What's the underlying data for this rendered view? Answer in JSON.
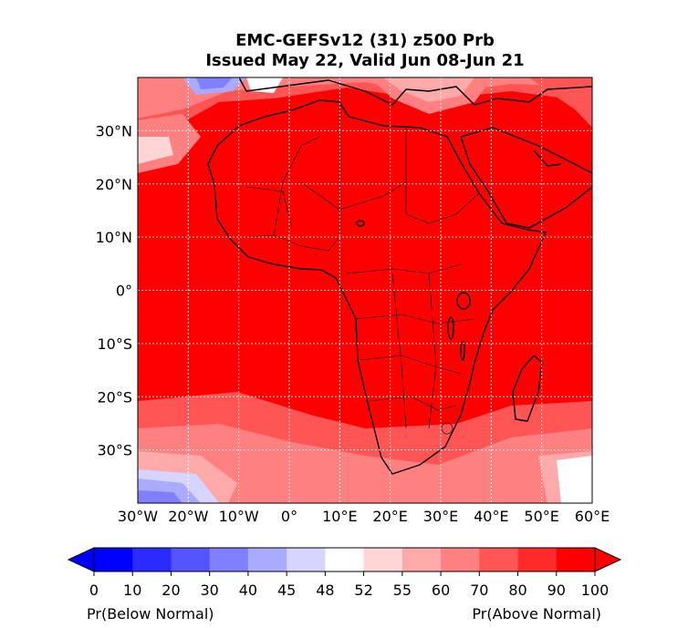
{
  "title": {
    "line1": "EMC-GEFSv12 (31) z500 Prb",
    "line2": "Issued May 22, Valid Jun 08-Jun 21"
  },
  "map": {
    "lon_ticks": [
      "30°W",
      "20°W",
      "10°W",
      "0°",
      "10°E",
      "20°E",
      "30°E",
      "40°E",
      "50°E",
      "60°E"
    ],
    "lat_ticks": [
      "30°N",
      "20°N",
      "10°N",
      "0°",
      "10°S",
      "20°S",
      "30°S"
    ],
    "gridlines": true,
    "extent": {
      "lon": [
        -30,
        60
      ],
      "lat": [
        -40,
        40
      ]
    }
  },
  "colorbar": {
    "levels": [
      "0",
      "10",
      "20",
      "30",
      "40",
      "45",
      "48",
      "52",
      "55",
      "60",
      "70",
      "80",
      "90",
      "100"
    ],
    "colors": [
      "#0000ff",
      "#2b2bff",
      "#5555ff",
      "#8080ff",
      "#aaaaff",
      "#d5d5ff",
      "#ffffff",
      "#ffd5d5",
      "#ffaaaa",
      "#ff8080",
      "#ff5555",
      "#ff2b2b",
      "#ff0000"
    ],
    "under_color": "#0000ff",
    "over_color": "#ff0000",
    "left_label": "Pr(Below Normal)",
    "right_label": "Pr(Above Normal)"
  }
}
